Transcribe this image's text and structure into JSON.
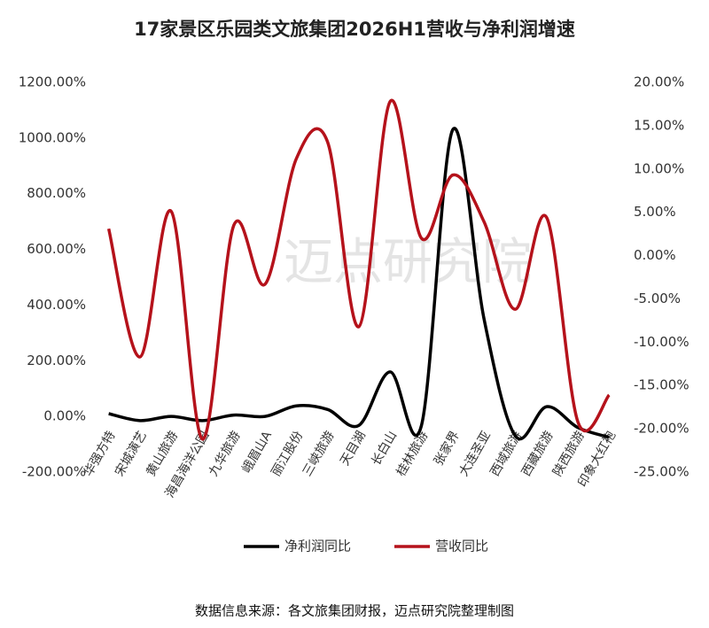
{
  "chart_data": {
    "type": "line",
    "title": "17家景区乐园类文旅集团2026H1营收与净利润增速",
    "source": "数据信息来源：各文旅集团财报，迈点研究院整理制图",
    "watermark": "迈点研究院",
    "categories": [
      "华强方特",
      "宋城演艺",
      "黄山旅游",
      "海昌海洋公园",
      "九华旅游",
      "峨眉山A",
      "丽江股份",
      "三峡旅游",
      "天目湖",
      "长白山",
      "桂林旅游",
      "张家界",
      "大连圣亚",
      "西域旅游",
      "西藏旅游",
      "陕西旅游",
      "印象大红袍"
    ],
    "series": [
      {
        "name": "净利润同比",
        "color": "#000000",
        "values": [
          10,
          -15,
          0,
          -15,
          5,
          0,
          38,
          25,
          -32,
          160,
          -32,
          1030,
          350,
          -70,
          35,
          -40,
          -75
        ]
      },
      {
        "name": "营收同比",
        "color": "#b5121b",
        "axis": "y2",
        "values": [
          3.1,
          -11.7,
          5.1,
          -21.2,
          3.5,
          -3.3,
          11.2,
          13.1,
          -8.2,
          17.8,
          2.0,
          9.3,
          3.9,
          -6.2,
          4.4,
          -19.2,
          -16.1
        ]
      }
    ],
    "ylim": [
      -200,
      1200
    ],
    "yticks": [
      {
        "value": -200,
        "label": "-200.00%"
      },
      {
        "value": 0,
        "label": "0.00%"
      },
      {
        "value": 200,
        "label": "200.00%"
      },
      {
        "value": 400,
        "label": "400.00%"
      },
      {
        "value": 600,
        "label": "600.00%"
      },
      {
        "value": 800,
        "label": "800.00%"
      },
      {
        "value": 1000,
        "label": "1000.00%"
      },
      {
        "value": 1200,
        "label": "1200.00%"
      }
    ],
    "y2lim": [
      -25,
      20
    ],
    "y2ticks": [
      {
        "value": -25,
        "label": "-25.00%"
      },
      {
        "value": -20,
        "label": "-20.00%"
      },
      {
        "value": -15,
        "label": "-15.00%"
      },
      {
        "value": -10,
        "label": "-10.00%"
      },
      {
        "value": -5,
        "label": "-5.00%"
      },
      {
        "value": 0,
        "label": "0.00%"
      },
      {
        "value": 5,
        "label": "5.00%"
      },
      {
        "value": 10,
        "label": "10.00%"
      },
      {
        "value": 15,
        "label": "15.00%"
      },
      {
        "value": 20,
        "label": "20.00%"
      }
    ],
    "legend": "bottom"
  }
}
